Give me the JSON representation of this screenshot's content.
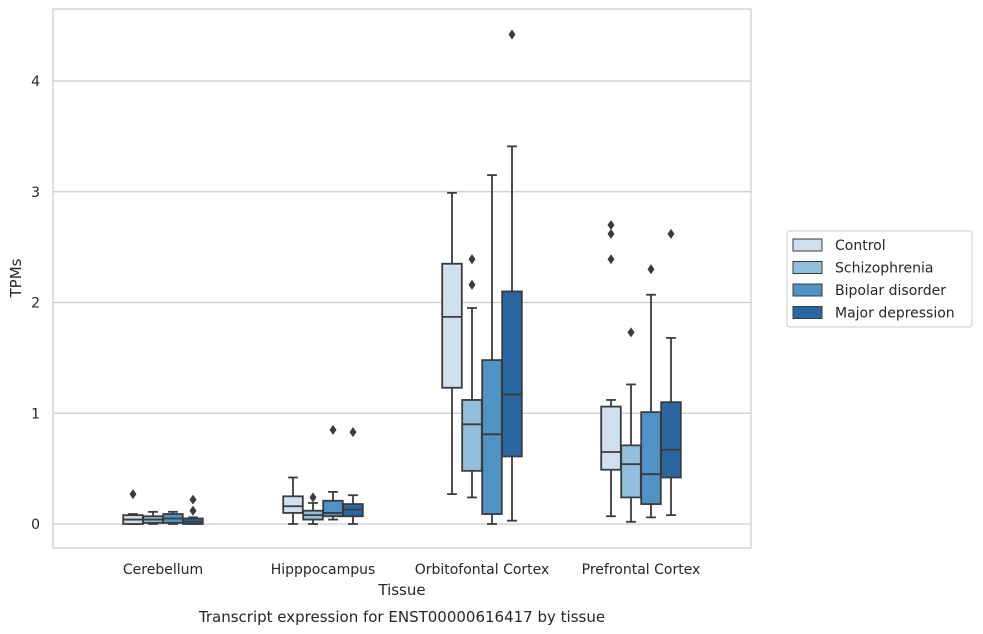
{
  "chart_data": {
    "type": "boxplot",
    "xlabel": "Tissue",
    "ylabel": "TPMs",
    "caption": "Transcript expression for ENST00000616417 by tissue",
    "ylim": [
      -0.22,
      4.65
    ],
    "yticks": [
      0,
      1,
      2,
      3,
      4
    ],
    "grid": "horizontal",
    "legend_position": "right",
    "categories": [
      "Cerebellum",
      "Hipppocampus",
      "Orbitofontal Cortex",
      "Prefrontal Cortex"
    ],
    "series": [
      {
        "name": "Control",
        "color": "#cfdfee",
        "boxes": [
          {
            "whislo": 0.0,
            "q1": 0.0,
            "med": 0.04,
            "q3": 0.08,
            "whishi": 0.09,
            "fliers": [
              0.27
            ]
          },
          {
            "whislo": 0.0,
            "q1": 0.1,
            "med": 0.16,
            "q3": 0.25,
            "whishi": 0.42,
            "fliers": []
          },
          {
            "whislo": 0.27,
            "q1": 1.23,
            "med": 1.87,
            "q3": 2.35,
            "whishi": 2.99,
            "fliers": []
          },
          {
            "whislo": 0.07,
            "q1": 0.49,
            "med": 0.65,
            "q3": 1.06,
            "whishi": 1.12,
            "fliers": [
              2.39,
              2.62,
              2.7
            ]
          }
        ]
      },
      {
        "name": "Schizophrenia",
        "color": "#92c0dc",
        "boxes": [
          {
            "whislo": 0.0,
            "q1": 0.01,
            "med": 0.04,
            "q3": 0.07,
            "whishi": 0.11,
            "fliers": []
          },
          {
            "whislo": 0.0,
            "q1": 0.04,
            "med": 0.08,
            "q3": 0.12,
            "whishi": 0.19,
            "fliers": [
              0.24
            ]
          },
          {
            "whislo": 0.24,
            "q1": 0.48,
            "med": 0.9,
            "q3": 1.12,
            "whishi": 1.95,
            "fliers": [
              2.16,
              2.39
            ]
          },
          {
            "whislo": 0.02,
            "q1": 0.24,
            "med": 0.54,
            "q3": 0.71,
            "whishi": 1.26,
            "fliers": [
              1.73
            ]
          }
        ]
      },
      {
        "name": "Bipolar disorder",
        "color": "#4f93c4",
        "boxes": [
          {
            "whislo": 0.0,
            "q1": 0.01,
            "med": 0.05,
            "q3": 0.09,
            "whishi": 0.11,
            "fliers": []
          },
          {
            "whislo": 0.04,
            "q1": 0.07,
            "med": 0.1,
            "q3": 0.21,
            "whishi": 0.29,
            "fliers": [
              0.85
            ]
          },
          {
            "whislo": 0.0,
            "q1": 0.09,
            "med": 0.81,
            "q3": 1.48,
            "whishi": 3.15,
            "fliers": []
          },
          {
            "whislo": 0.06,
            "q1": 0.18,
            "med": 0.45,
            "q3": 1.01,
            "whishi": 2.07,
            "fliers": [
              2.3
            ]
          }
        ]
      },
      {
        "name": "Major depression",
        "color": "#2a67a2",
        "boxes": [
          {
            "whislo": 0.0,
            "q1": 0.0,
            "med": 0.02,
            "q3": 0.05,
            "whishi": 0.06,
            "fliers": [
              0.12,
              0.22
            ]
          },
          {
            "whislo": 0.0,
            "q1": 0.07,
            "med": 0.13,
            "q3": 0.18,
            "whishi": 0.26,
            "fliers": [
              0.83
            ]
          },
          {
            "whislo": 0.03,
            "q1": 0.61,
            "med": 1.17,
            "q3": 2.1,
            "whishi": 3.41,
            "fliers": [
              4.42
            ]
          },
          {
            "whislo": 0.08,
            "q1": 0.42,
            "med": 0.67,
            "q3": 1.1,
            "whishi": 1.68,
            "fliers": [
              2.62
            ]
          }
        ]
      }
    ]
  }
}
